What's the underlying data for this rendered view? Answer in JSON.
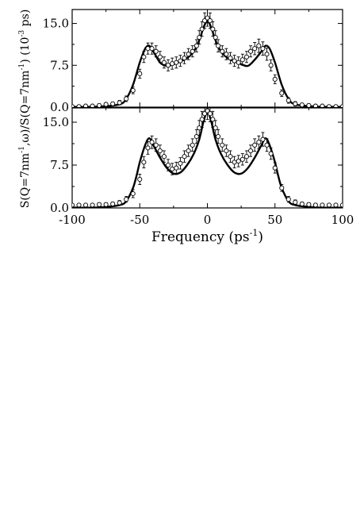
{
  "chart_data": [
    {
      "type": "line",
      "panel": "top",
      "xlim": [
        -100,
        100
      ],
      "ylim": [
        0,
        17.5
      ],
      "x_ticks": [
        -100,
        -50,
        0,
        50,
        100
      ],
      "y_ticks": [
        0.0,
        7.5,
        15.0
      ],
      "y_tick_labels": [
        "0.0",
        "7.5",
        "15.0"
      ],
      "grid": false,
      "series": [
        {
          "style": "solid-line",
          "color": "#000000",
          "x": [
            -100,
            -80,
            -65,
            -60,
            -55,
            -50,
            -46,
            -43,
            -40,
            -35,
            -30,
            -25,
            -20,
            -15,
            -10,
            -6,
            -3,
            -1,
            0,
            1,
            3,
            6,
            10,
            15,
            20,
            25,
            30,
            35,
            40,
            43,
            46,
            50,
            55,
            60,
            65,
            80,
            100
          ],
          "y": [
            0.05,
            0.1,
            0.5,
            1.5,
            4.0,
            8.0,
            10.5,
            11.0,
            10.0,
            8.0,
            7.4,
            7.7,
            8.2,
            8.8,
            10.0,
            12.0,
            14.2,
            15.2,
            15.3,
            15.2,
            14.2,
            12.0,
            10.0,
            8.8,
            8.2,
            7.7,
            7.4,
            8.5,
            10.0,
            11.0,
            10.5,
            8.0,
            4.0,
            1.5,
            0.5,
            0.1,
            0.05
          ]
        },
        {
          "style": "open-circles-errorbars",
          "color": "#000000",
          "x": [
            -100,
            -95,
            -90,
            -85,
            -80,
            -75,
            -70,
            -65,
            -60,
            -55,
            -50,
            -47,
            -44,
            -41,
            -38,
            -35,
            -32,
            -29,
            -26,
            -23,
            -20,
            -17,
            -14,
            -11,
            -8,
            -6,
            -4,
            -2,
            0,
            2,
            4,
            6,
            8,
            11,
            14,
            17,
            20,
            23,
            26,
            29,
            32,
            35,
            38,
            41,
            44,
            47,
            50,
            55,
            60,
            65,
            70,
            75,
            80,
            85,
            90,
            95,
            100
          ],
          "y": [
            0.1,
            0.1,
            0.2,
            0.2,
            0.3,
            0.5,
            0.6,
            0.8,
            1.5,
            3.0,
            6.0,
            9.0,
            10.5,
            10.5,
            10.0,
            9.0,
            8.0,
            7.5,
            7.8,
            8.0,
            8.3,
            8.8,
            9.5,
            10.0,
            11.0,
            12.5,
            14.0,
            15.5,
            16.0,
            15.5,
            14.0,
            12.5,
            11.0,
            10.0,
            9.5,
            8.8,
            8.3,
            8.0,
            8.5,
            9.0,
            10.0,
            10.5,
            11.0,
            10.5,
            9.5,
            7.5,
            5.0,
            2.5,
            1.2,
            0.6,
            0.4,
            0.3,
            0.2,
            0.2,
            0.1,
            0.1,
            0.1
          ],
          "err": [
            0.2,
            0.2,
            0.2,
            0.2,
            0.3,
            0.3,
            0.3,
            0.4,
            0.5,
            0.6,
            0.8,
            1.0,
            1.0,
            1.0,
            1.0,
            1.0,
            1.0,
            1.0,
            1.0,
            1.0,
            1.0,
            1.0,
            1.0,
            1.0,
            1.1,
            1.2,
            1.3,
            1.4,
            1.5,
            1.4,
            1.3,
            1.2,
            1.1,
            1.0,
            1.0,
            1.0,
            1.0,
            1.0,
            1.0,
            1.0,
            1.0,
            1.1,
            1.2,
            1.2,
            1.1,
            1.0,
            0.8,
            0.6,
            0.5,
            0.4,
            0.3,
            0.3,
            0.3,
            0.2,
            0.2,
            0.2,
            0.2
          ]
        }
      ]
    },
    {
      "type": "line",
      "panel": "bottom",
      "xlim": [
        -100,
        100
      ],
      "ylim": [
        0,
        17.5
      ],
      "x_ticks": [
        -100,
        -50,
        0,
        50,
        100
      ],
      "x_tick_labels": [
        "-100",
        "-50",
        "0",
        "50",
        "100"
      ],
      "y_ticks": [
        0.0,
        7.5,
        15.0
      ],
      "y_tick_labels": [
        "0.0",
        "7.5",
        "15.0"
      ],
      "xlabel": "Frequency (ps",
      "xlabel_sup": "-1",
      "xlabel_tail": ")",
      "grid": false,
      "series": [
        {
          "style": "solid-line",
          "color": "#000000",
          "x": [
            -100,
            -80,
            -65,
            -60,
            -55,
            -52,
            -50,
            -46,
            -43,
            -40,
            -35,
            -30,
            -25,
            -20,
            -15,
            -10,
            -6,
            -3,
            -1,
            0,
            1,
            3,
            6,
            10,
            15,
            20,
            25,
            30,
            35,
            40,
            43,
            46,
            50,
            52,
            55,
            60,
            65,
            80,
            100
          ],
          "y": [
            0.05,
            0.1,
            0.5,
            1.2,
            3.5,
            6.0,
            8.0,
            11.0,
            12.2,
            11.0,
            8.8,
            7.0,
            6.0,
            6.2,
            7.5,
            9.5,
            12.0,
            15.0,
            16.5,
            16.8,
            16.5,
            15.0,
            12.0,
            9.5,
            7.5,
            6.2,
            6.0,
            7.0,
            8.8,
            11.0,
            12.2,
            11.0,
            8.0,
            6.0,
            3.5,
            1.2,
            0.5,
            0.1,
            0.05
          ]
        },
        {
          "style": "open-circles-errorbars",
          "color": "#000000",
          "x": [
            -100,
            -95,
            -90,
            -85,
            -80,
            -75,
            -70,
            -65,
            -60,
            -55,
            -50,
            -47,
            -44,
            -41,
            -38,
            -35,
            -32,
            -29,
            -26,
            -23,
            -20,
            -17,
            -14,
            -11,
            -8,
            -6,
            -4,
            -2,
            0,
            2,
            4,
            6,
            8,
            11,
            14,
            17,
            20,
            23,
            26,
            29,
            32,
            35,
            38,
            41,
            44,
            47,
            50,
            55,
            60,
            65,
            70,
            75,
            80,
            85,
            90,
            95,
            100
          ],
          "y": [
            0.5,
            0.5,
            0.5,
            0.5,
            0.6,
            0.6,
            0.7,
            0.9,
            1.5,
            2.5,
            5.0,
            8.0,
            10.5,
            11.5,
            11.0,
            10.0,
            9.0,
            7.5,
            6.8,
            7.0,
            7.8,
            9.0,
            10.0,
            11.0,
            12.5,
            14.0,
            15.5,
            16.5,
            17.0,
            16.5,
            15.5,
            14.0,
            12.5,
            11.0,
            10.0,
            9.0,
            8.0,
            8.2,
            8.5,
            9.0,
            10.0,
            11.0,
            11.5,
            12.0,
            11.0,
            9.5,
            7.0,
            3.5,
            1.5,
            1.0,
            0.7,
            0.6,
            0.5,
            0.5,
            0.5,
            0.5,
            0.5
          ],
          "err": [
            0.2,
            0.2,
            0.2,
            0.2,
            0.3,
            0.3,
            0.3,
            0.4,
            0.5,
            0.7,
            0.9,
            1.0,
            1.1,
            1.1,
            1.1,
            1.0,
            1.0,
            1.0,
            1.0,
            1.0,
            1.0,
            1.0,
            1.0,
            1.1,
            1.2,
            1.3,
            1.4,
            1.4,
            1.5,
            1.4,
            1.4,
            1.3,
            1.2,
            1.1,
            1.0,
            1.0,
            1.0,
            1.0,
            1.0,
            1.0,
            1.0,
            1.1,
            1.1,
            1.2,
            1.1,
            1.0,
            0.9,
            0.6,
            0.5,
            0.4,
            0.3,
            0.3,
            0.3,
            0.2,
            0.2,
            0.2,
            0.2
          ]
        }
      ]
    }
  ],
  "shared_ylabel": {
    "parts": [
      "S(Q=7nm",
      "-1",
      ",ω)/S(Q=7nm",
      "-1",
      ") (10",
      "-3",
      " ps)"
    ]
  }
}
